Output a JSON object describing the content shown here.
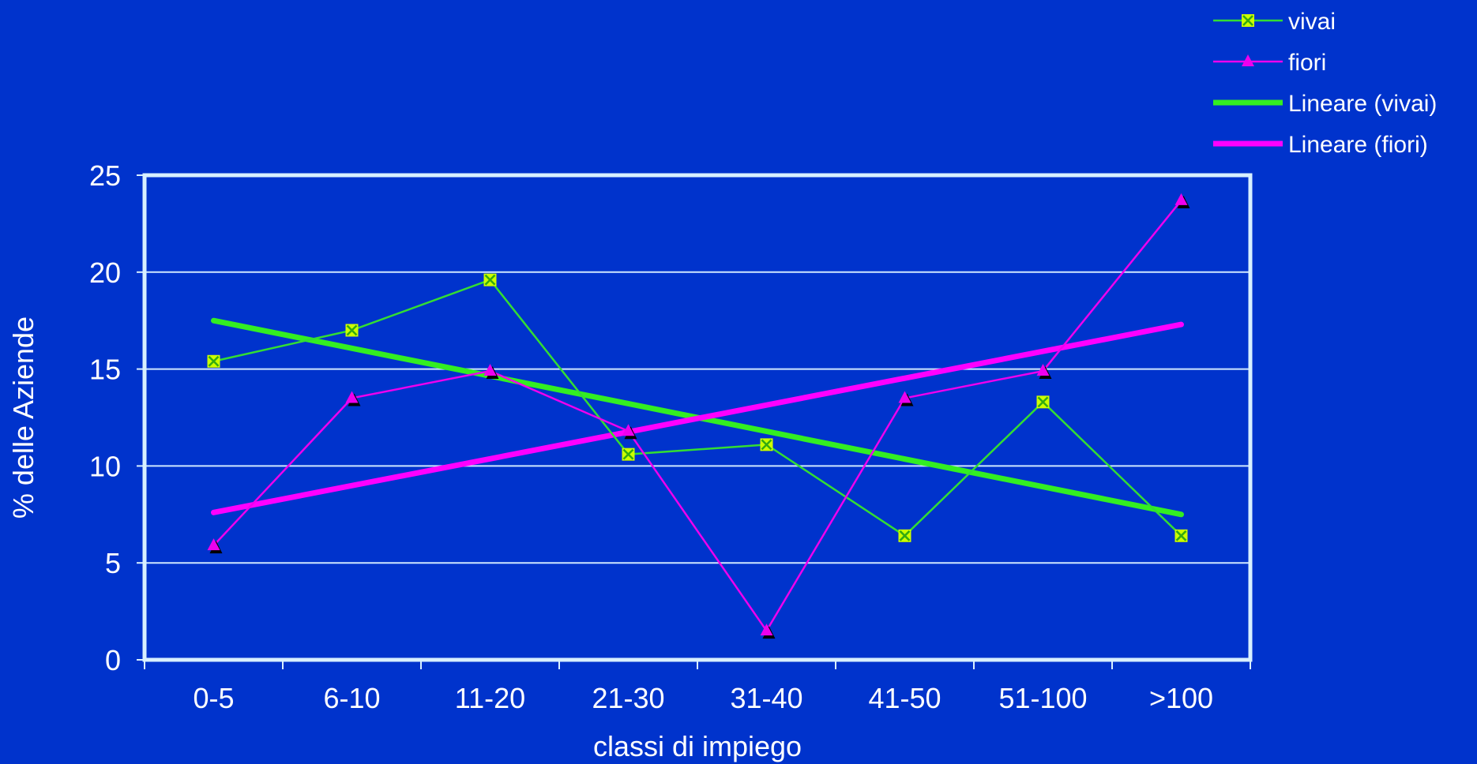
{
  "chart_data": {
    "type": "line",
    "xlabel": "classi di impiego",
    "ylabel": "% delle Aziende",
    "ylim": [
      0,
      25
    ],
    "yticks": [
      "0",
      "5",
      "10",
      "15",
      "20",
      "25"
    ],
    "categories": [
      "0-5",
      "6-10",
      "11-20",
      "21-30",
      "31-40",
      "41-50",
      "51-100",
      ">100"
    ],
    "grid": true,
    "legend_position": "top-right",
    "series": [
      {
        "name": "vivai",
        "values": [
          15.4,
          17.0,
          19.6,
          10.6,
          11.1,
          6.4,
          13.3,
          6.4
        ],
        "color": "#33dd33",
        "marker": "x-square",
        "marker_color": "#ccff00"
      },
      {
        "name": "fiori",
        "values": [
          5.9,
          13.5,
          14.9,
          11.8,
          1.5,
          13.5,
          14.9,
          23.7
        ],
        "color": "#ee00ee",
        "marker": "triangle",
        "marker_color": "#ee00ee"
      }
    ],
    "trendlines": [
      {
        "name": "Lineare (vivai)",
        "start": 17.5,
        "end": 7.5,
        "color": "#33ee22"
      },
      {
        "name": "Lineare (fiori)",
        "start": 7.6,
        "end": 17.3,
        "color": "#ff00ff"
      }
    ],
    "colors": {
      "background": "#0033cc",
      "grid": "#cfe8ff",
      "plot_border": "#d8f0ff",
      "text": "#ffffff",
      "shadow": "#000000"
    }
  }
}
